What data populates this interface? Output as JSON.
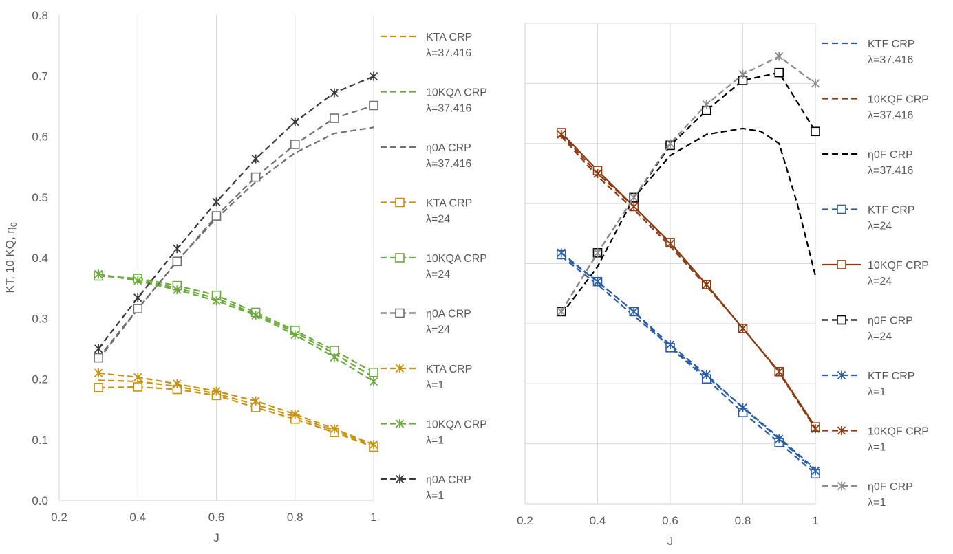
{
  "chart_data": [
    {
      "type": "line",
      "title": "",
      "xlabel": "J",
      "ylabel": "KT, 10 KQ, η",
      "ylabel_sub": "0",
      "xlim": [
        0.2,
        1.0
      ],
      "ylim": [
        0.0,
        0.8
      ],
      "x_ticks": [
        0.2,
        0.4,
        0.6,
        0.8,
        1.0
      ],
      "x_tick_labels": [
        "0.2",
        "0.4",
        "0.6",
        "0.8",
        "1"
      ],
      "y_ticks": [
        0,
        0.1,
        0.2,
        0.3,
        0.4,
        0.5,
        0.6,
        0.7,
        0.8
      ],
      "y_tick_labels": [
        "0.0",
        "0.1",
        "0.2",
        "0.3",
        "0.4",
        "0.5",
        "0.6",
        "0.7",
        "0.8"
      ],
      "grid": "vertical",
      "legend_placement": "right",
      "series": [
        {
          "name": "KTA CRP",
          "sub": "λ=37.416",
          "color": "#c8910e",
          "marker": "none",
          "solid": false,
          "x": [
            0.3,
            0.4,
            0.5,
            0.6,
            0.7,
            0.8,
            0.9,
            1.0
          ],
          "values": [
            0.198,
            0.196,
            0.188,
            0.176,
            0.158,
            0.138,
            0.115,
            0.09
          ]
        },
        {
          "name": "10KQA CRP",
          "sub": "λ=37.416",
          "color": "#6aaa3c",
          "marker": "none",
          "solid": false,
          "x": [
            0.3,
            0.4,
            0.5,
            0.6,
            0.7,
            0.8,
            0.9,
            1.0
          ],
          "values": [
            0.372,
            0.364,
            0.35,
            0.333,
            0.307,
            0.277,
            0.242,
            0.203
          ]
        },
        {
          "name": "η0A CRP",
          "sub": "λ=37.416",
          "color": "#707070",
          "marker": "none",
          "solid": false,
          "x": [
            0.3,
            0.4,
            0.5,
            0.6,
            0.7,
            0.8,
            0.9,
            1.0
          ],
          "values": [
            0.232,
            0.315,
            0.395,
            0.465,
            0.525,
            0.573,
            0.605,
            0.615
          ]
        },
        {
          "name": "KTA CRP",
          "sub": "λ=24",
          "color": "#c8910e",
          "marker": "square",
          "solid": false,
          "x": [
            0.3,
            0.4,
            0.5,
            0.6,
            0.7,
            0.8,
            0.9,
            1.0
          ],
          "values": [
            0.186,
            0.187,
            0.183,
            0.173,
            0.153,
            0.134,
            0.112,
            0.088
          ]
        },
        {
          "name": "10KQA CRP",
          "sub": "λ=24",
          "color": "#6aaa3c",
          "marker": "square",
          "solid": false,
          "x": [
            0.3,
            0.4,
            0.5,
            0.6,
            0.7,
            0.8,
            0.9,
            1.0
          ],
          "values": [
            0.37,
            0.366,
            0.354,
            0.338,
            0.31,
            0.28,
            0.247,
            0.211
          ]
        },
        {
          "name": "η0A CRP",
          "sub": "λ=24",
          "color": "#707070",
          "marker": "square",
          "solid": false,
          "x": [
            0.3,
            0.4,
            0.5,
            0.6,
            0.7,
            0.8,
            0.9,
            1.0
          ],
          "values": [
            0.235,
            0.316,
            0.394,
            0.469,
            0.533,
            0.587,
            0.63,
            0.651
          ]
        },
        {
          "name": "KTA CRP",
          "sub": "λ=1",
          "color": "#c8910e",
          "marker": "star",
          "solid": false,
          "x": [
            0.3,
            0.4,
            0.5,
            0.6,
            0.7,
            0.8,
            0.9,
            1.0
          ],
          "values": [
            0.21,
            0.203,
            0.192,
            0.18,
            0.164,
            0.142,
            0.118,
            0.092
          ]
        },
        {
          "name": "10KQA CRP",
          "sub": "λ=1",
          "color": "#6aaa3c",
          "marker": "star",
          "solid": false,
          "x": [
            0.3,
            0.4,
            0.5,
            0.6,
            0.7,
            0.8,
            0.9,
            1.0
          ],
          "values": [
            0.373,
            0.362,
            0.347,
            0.329,
            0.305,
            0.273,
            0.236,
            0.196
          ]
        },
        {
          "name": "η0A CRP",
          "sub": "λ=1",
          "color": "#3a3a3a",
          "marker": "star",
          "solid": false,
          "x": [
            0.3,
            0.4,
            0.5,
            0.6,
            0.7,
            0.8,
            0.9,
            1.0
          ],
          "values": [
            0.25,
            0.334,
            0.415,
            0.492,
            0.563,
            0.624,
            0.672,
            0.699
          ]
        }
      ]
    },
    {
      "type": "line",
      "title": "",
      "xlabel": "J",
      "ylabel": "",
      "xlim": [
        0.2,
        1.0
      ],
      "ylim": [
        0.0,
        0.8
      ],
      "x_ticks": [
        0.2,
        0.4,
        0.6,
        0.8,
        1.0
      ],
      "x_tick_labels": [
        "0.2",
        "0.4",
        "0.6",
        "0.8",
        "1"
      ],
      "y_ticks": [
        0,
        0.1,
        0.2,
        0.3,
        0.4,
        0.5,
        0.6,
        0.7,
        0.8
      ],
      "y_tick_labels": [],
      "grid": "both",
      "legend_placement": "right",
      "series": [
        {
          "name": "KTF CRP",
          "sub": "λ=37.416",
          "color": "#2a5ca8",
          "marker": "none",
          "solid": false,
          "x": [
            0.3,
            0.4,
            0.5,
            0.6,
            0.7,
            0.8,
            0.9,
            1.0
          ],
          "values": [
            0.412,
            0.365,
            0.313,
            0.262,
            0.212,
            0.161,
            0.11,
            0.058
          ]
        },
        {
          "name": "10KQF CRP",
          "sub": "λ=37.416",
          "color": "#8b3a12",
          "marker": "none",
          "solid": false,
          "x": [
            0.3,
            0.4,
            0.5,
            0.6,
            0.7,
            0.8,
            0.9,
            1.0
          ],
          "values": [
            0.612,
            0.545,
            0.49,
            0.429,
            0.362,
            0.293,
            0.218,
            0.125
          ]
        },
        {
          "name": "η0F CRP",
          "sub": "λ=37.416",
          "color": "#000000",
          "marker": "none",
          "solid": false,
          "x": [
            0.3,
            0.4,
            0.5,
            0.6,
            0.7,
            0.8,
            0.85,
            0.9,
            0.95,
            1.0
          ],
          "values": [
            0.315,
            0.395,
            0.51,
            0.58,
            0.615,
            0.625,
            0.62,
            0.6,
            0.5,
            0.38
          ]
        },
        {
          "name": "KTF CRP",
          "sub": "λ=24",
          "color": "#2a5ca8",
          "marker": "square",
          "solid": false,
          "x": [
            0.3,
            0.4,
            0.5,
            0.6,
            0.7,
            0.8,
            0.9,
            1.0
          ],
          "values": [
            0.415,
            0.37,
            0.32,
            0.26,
            0.208,
            0.152,
            0.102,
            0.05
          ]
        },
        {
          "name": "10KQF CRP",
          "sub": "λ=24",
          "color": "#8b3a12",
          "marker": "square",
          "solid": true,
          "x": [
            0.3,
            0.4,
            0.5,
            0.6,
            0.7,
            0.8,
            0.9,
            1.0
          ],
          "values": [
            0.618,
            0.555,
            0.495,
            0.435,
            0.365,
            0.292,
            0.22,
            0.128
          ]
        },
        {
          "name": "η0F CRP",
          "sub": "λ=24",
          "color": "#000000",
          "marker": "square",
          "solid": false,
          "x": [
            0.3,
            0.4,
            0.5,
            0.6,
            0.7,
            0.8,
            0.9,
            1.0
          ],
          "values": [
            0.32,
            0.418,
            0.51,
            0.597,
            0.655,
            0.705,
            0.718,
            0.62
          ]
        },
        {
          "name": "KTF CRP",
          "sub": "λ=1",
          "color": "#2a5ca8",
          "marker": "star",
          "solid": false,
          "x": [
            0.3,
            0.4,
            0.5,
            0.6,
            0.7,
            0.8,
            0.9,
            1.0
          ],
          "values": [
            0.418,
            0.37,
            0.32,
            0.265,
            0.215,
            0.16,
            0.108,
            0.055
          ]
        },
        {
          "name": "10KQF CRP",
          "sub": "λ=1",
          "color": "#8b3a12",
          "marker": "star",
          "solid": false,
          "x": [
            0.3,
            0.4,
            0.5,
            0.6,
            0.7,
            0.8,
            0.9,
            1.0
          ],
          "values": [
            0.615,
            0.55,
            0.495,
            0.433,
            0.365,
            0.292,
            0.22,
            0.125
          ]
        },
        {
          "name": "η0F CRP",
          "sub": "λ=1",
          "color": "#8c8c8c",
          "marker": "star",
          "solid": false,
          "x": [
            0.3,
            0.4,
            0.5,
            0.6,
            0.7,
            0.8,
            0.9,
            1.0
          ],
          "values": [
            0.32,
            0.418,
            0.51,
            0.6,
            0.665,
            0.715,
            0.745,
            0.7
          ]
        }
      ]
    }
  ]
}
